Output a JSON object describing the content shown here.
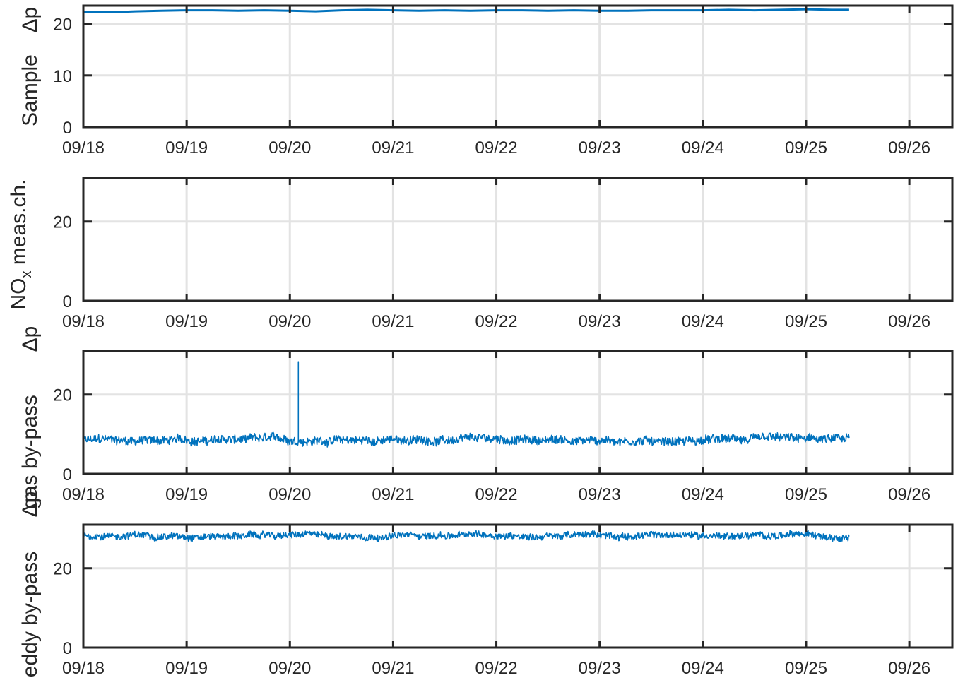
{
  "chart_data": [
    {
      "type": "line",
      "ylabel": "Sample Δp",
      "x_ticks": [
        "09/18",
        "09/19",
        "09/20",
        "09/21",
        "09/22",
        "09/23",
        "09/24",
        "09/25",
        "09/26"
      ],
      "xlim": [
        "09/18 00:00",
        "09/26 10:00"
      ],
      "y_ticks": [
        0,
        10,
        20
      ],
      "ylim": [
        0,
        23.5
      ],
      "grid": true,
      "color": "#0072BD",
      "series": [
        {
          "points": [
            [
              "09/18 00:00",
              22.3
            ],
            [
              "09/18 06:00",
              22.2
            ],
            [
              "09/18 12:00",
              22.4
            ],
            [
              "09/18 18:00",
              22.5
            ],
            [
              "09/19 00:00",
              22.6
            ],
            [
              "09/19 06:00",
              22.6
            ],
            [
              "09/19 12:00",
              22.5
            ],
            [
              "09/19 18:00",
              22.6
            ],
            [
              "09/20 00:00",
              22.5
            ],
            [
              "09/20 06:00",
              22.4
            ],
            [
              "09/20 12:00",
              22.6
            ],
            [
              "09/20 18:00",
              22.7
            ],
            [
              "09/21 00:00",
              22.6
            ],
            [
              "09/21 06:00",
              22.5
            ],
            [
              "09/21 12:00",
              22.6
            ],
            [
              "09/21 18:00",
              22.5
            ],
            [
              "09/22 00:00",
              22.6
            ],
            [
              "09/22 06:00",
              22.6
            ],
            [
              "09/22 12:00",
              22.5
            ],
            [
              "09/22 18:00",
              22.6
            ],
            [
              "09/23 00:00",
              22.5
            ],
            [
              "09/23 06:00",
              22.5
            ],
            [
              "09/23 12:00",
              22.6
            ],
            [
              "09/23 18:00",
              22.6
            ],
            [
              "09/24 00:00",
              22.6
            ],
            [
              "09/24 06:00",
              22.7
            ],
            [
              "09/24 12:00",
              22.6
            ],
            [
              "09/24 18:00",
              22.7
            ],
            [
              "09/25 00:00",
              22.8
            ],
            [
              "09/25 06:00",
              22.7
            ],
            [
              "09/25 10:00",
              22.7
            ]
          ]
        }
      ]
    },
    {
      "type": "line",
      "ylabel": "NOx meas.ch. Δp",
      "x_ticks": [
        "09/18",
        "09/19",
        "09/20",
        "09/21",
        "09/22",
        "09/23",
        "09/24",
        "09/25",
        "09/26"
      ],
      "xlim": [
        "09/18 00:00",
        "09/26 10:00"
      ],
      "y_ticks": [
        0,
        20
      ],
      "ylim": [
        0,
        31
      ],
      "grid": true,
      "color": "#0072BD",
      "series": []
    },
    {
      "type": "line",
      "ylabel": "Δp gas by-pass",
      "x_ticks": [
        "09/18",
        "09/19",
        "09/20",
        "09/21",
        "09/22",
        "09/23",
        "09/24",
        "09/25",
        "09/26"
      ],
      "xlim": [
        "09/18 00:00",
        "09/26 10:00"
      ],
      "y_ticks": [
        0,
        20
      ],
      "ylim": [
        0,
        31
      ],
      "grid": true,
      "color": "#0072BD",
      "series": [
        {
          "mean": 8.5,
          "noise": 1.3,
          "start": "09/18 00:00",
          "end": "09/25 10:00",
          "spikes": [
            [
              "09/20 02:00",
              28.3
            ]
          ]
        }
      ]
    },
    {
      "type": "line",
      "ylabel": "Δp eddy by-pass",
      "x_ticks": [
        "09/18",
        "09/19",
        "09/20",
        "09/21",
        "09/22",
        "09/23",
        "09/24",
        "09/25",
        "09/26"
      ],
      "xlim": [
        "09/18 00:00",
        "09/26 10:00"
      ],
      "y_ticks": [
        0,
        20
      ],
      "ylim": [
        0,
        31
      ],
      "grid": true,
      "color": "#0072BD",
      "series": [
        {
          "mean": 28.3,
          "noise": 1.0,
          "start": "09/18 00:00",
          "end": "09/25 10:00",
          "spikes": []
        }
      ]
    }
  ]
}
